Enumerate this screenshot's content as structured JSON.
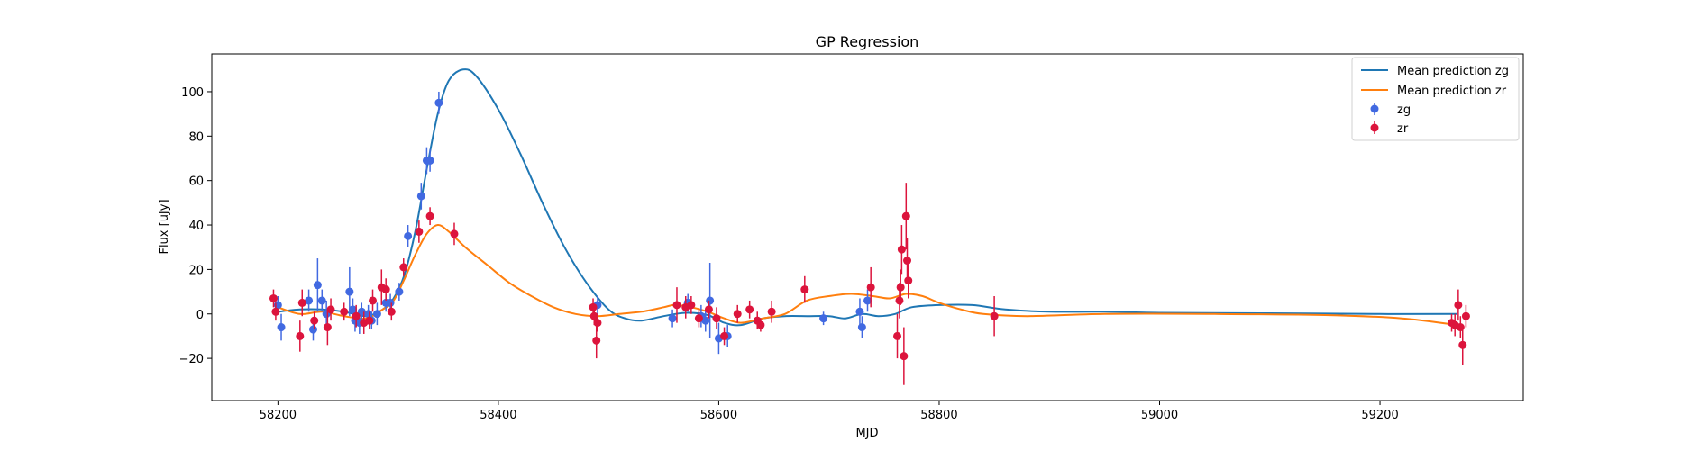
{
  "chart_data": {
    "type": "scatter",
    "title": "GP Regression",
    "xlabel": "MJD",
    "ylabel": "Flux [uJy]",
    "xlim": [
      58140,
      59330
    ],
    "ylim": [
      -39,
      117
    ],
    "xticks": [
      58200,
      58400,
      58600,
      58800,
      59000,
      59200
    ],
    "yticks": [
      -20,
      0,
      20,
      40,
      60,
      80,
      100
    ],
    "grid": false,
    "legend_position": "upper right",
    "lines": [
      {
        "name": "Mean prediction zg",
        "color": "#1f77b4",
        "points": [
          [
            58200,
            1
          ],
          [
            58220,
            2
          ],
          [
            58240,
            2
          ],
          [
            58260,
            1
          ],
          [
            58280,
            -1
          ],
          [
            58295,
            2
          ],
          [
            58305,
            7
          ],
          [
            58315,
            18
          ],
          [
            58325,
            38
          ],
          [
            58335,
            65
          ],
          [
            58345,
            90
          ],
          [
            58355,
            105
          ],
          [
            58368,
            110
          ],
          [
            58380,
            107
          ],
          [
            58400,
            92
          ],
          [
            58420,
            72
          ],
          [
            58440,
            50
          ],
          [
            58460,
            30
          ],
          [
            58480,
            14
          ],
          [
            58500,
            2
          ],
          [
            58515,
            -2
          ],
          [
            58530,
            -3
          ],
          [
            58550,
            -1
          ],
          [
            58570,
            0.5
          ],
          [
            58590,
            -0.5
          ],
          [
            58605,
            -4
          ],
          [
            58620,
            -5
          ],
          [
            58640,
            -2
          ],
          [
            58660,
            -1
          ],
          [
            58680,
            -1
          ],
          [
            58700,
            -1
          ],
          [
            58715,
            -2
          ],
          [
            58730,
            0
          ],
          [
            58745,
            -1
          ],
          [
            58760,
            0
          ],
          [
            58775,
            3
          ],
          [
            58800,
            4
          ],
          [
            58830,
            4
          ],
          [
            58860,
            2
          ],
          [
            58900,
            1
          ],
          [
            58950,
            1
          ],
          [
            59000,
            0.5
          ],
          [
            59100,
            0.3
          ],
          [
            59200,
            0
          ],
          [
            59270,
            0
          ]
        ]
      },
      {
        "name": "Mean prediction zr",
        "color": "#ff7f0e",
        "points": [
          [
            58200,
            3
          ],
          [
            58220,
            0
          ],
          [
            58240,
            1
          ],
          [
            58260,
            -1
          ],
          [
            58280,
            -2
          ],
          [
            58295,
            2
          ],
          [
            58305,
            6
          ],
          [
            58315,
            16
          ],
          [
            58325,
            27
          ],
          [
            58335,
            36
          ],
          [
            58345,
            40
          ],
          [
            58355,
            37
          ],
          [
            58370,
            30
          ],
          [
            58390,
            22
          ],
          [
            58410,
            14
          ],
          [
            58430,
            8
          ],
          [
            58450,
            3
          ],
          [
            58470,
            0
          ],
          [
            58490,
            -1
          ],
          [
            58510,
            0
          ],
          [
            58530,
            1
          ],
          [
            58550,
            3
          ],
          [
            58560,
            4
          ],
          [
            58575,
            3
          ],
          [
            58590,
            1
          ],
          [
            58605,
            -2
          ],
          [
            58620,
            -4
          ],
          [
            58640,
            -2
          ],
          [
            58660,
            0
          ],
          [
            58680,
            6
          ],
          [
            58700,
            8
          ],
          [
            58720,
            9
          ],
          [
            58740,
            8
          ],
          [
            58755,
            7
          ],
          [
            58770,
            9
          ],
          [
            58785,
            8
          ],
          [
            58800,
            5
          ],
          [
            58820,
            2
          ],
          [
            58840,
            0
          ],
          [
            58880,
            -1
          ],
          [
            58950,
            0
          ],
          [
            59050,
            0
          ],
          [
            59150,
            -0.5
          ],
          [
            59220,
            -2
          ],
          [
            59270,
            -5
          ]
        ]
      }
    ],
    "series": [
      {
        "name": "zg",
        "color": "#4169e1",
        "points": [
          [
            58200,
            4,
            4
          ],
          [
            58203,
            -6,
            6
          ],
          [
            58228,
            6,
            5
          ],
          [
            58232,
            -7,
            5
          ],
          [
            58236,
            13,
            12
          ],
          [
            58240,
            6,
            5
          ],
          [
            58244,
            0,
            6
          ],
          [
            58265,
            10,
            11
          ],
          [
            58268,
            2,
            5
          ],
          [
            58270,
            -3,
            5
          ],
          [
            58274,
            -4,
            5
          ],
          [
            58276,
            1,
            4
          ],
          [
            58282,
            0,
            4
          ],
          [
            58285,
            -3,
            4
          ],
          [
            58290,
            0,
            5
          ],
          [
            58298,
            5,
            4
          ],
          [
            58302,
            5,
            4
          ],
          [
            58310,
            10,
            4
          ],
          [
            58318,
            35,
            5
          ],
          [
            58330,
            53,
            6
          ],
          [
            58335,
            69,
            6
          ],
          [
            58338,
            69,
            5
          ],
          [
            58346,
            95,
            5
          ],
          [
            58490,
            4,
            4
          ],
          [
            58558,
            -2,
            4
          ],
          [
            58572,
            5,
            4
          ],
          [
            58584,
            -1,
            5
          ],
          [
            58588,
            -3,
            5
          ],
          [
            58592,
            6,
            17
          ],
          [
            58600,
            -11,
            7
          ],
          [
            58608,
            -10,
            5
          ],
          [
            58695,
            -2,
            3
          ],
          [
            58728,
            1,
            6
          ],
          [
            58730,
            -6,
            5
          ],
          [
            58735,
            6,
            5
          ]
        ]
      },
      {
        "name": "zr",
        "color": "#dc143c",
        "points": [
          [
            58196,
            7,
            4
          ],
          [
            58198,
            1,
            4
          ],
          [
            58220,
            -10,
            7
          ],
          [
            58222,
            5,
            6
          ],
          [
            58233,
            -3,
            4
          ],
          [
            58245,
            -6,
            8
          ],
          [
            58248,
            2,
            5
          ],
          [
            58260,
            1,
            4
          ],
          [
            58271,
            -1,
            5
          ],
          [
            58278,
            -4,
            5
          ],
          [
            58283,
            -3,
            4
          ],
          [
            58286,
            6,
            5
          ],
          [
            58294,
            12,
            8
          ],
          [
            58298,
            11,
            5
          ],
          [
            58303,
            1,
            4
          ],
          [
            58314,
            21,
            4
          ],
          [
            58328,
            37,
            5
          ],
          [
            58338,
            44,
            4
          ],
          [
            58360,
            36,
            5
          ],
          [
            58486,
            3,
            4
          ],
          [
            58487,
            -1,
            4
          ],
          [
            58489,
            -12,
            8
          ],
          [
            58490,
            -4,
            4
          ],
          [
            58562,
            4,
            8
          ],
          [
            58570,
            3,
            5
          ],
          [
            58575,
            4,
            4
          ],
          [
            58582,
            -2,
            4
          ],
          [
            58591,
            2,
            4
          ],
          [
            58598,
            -2,
            5
          ],
          [
            58605,
            -10,
            4
          ],
          [
            58617,
            0,
            4
          ],
          [
            58628,
            2,
            4
          ],
          [
            58635,
            -3,
            4
          ],
          [
            58638,
            -5,
            3
          ],
          [
            58648,
            1,
            5
          ],
          [
            58678,
            11,
            6
          ],
          [
            58738,
            12,
            9
          ],
          [
            58762,
            -10,
            10
          ],
          [
            58764,
            6,
            8
          ],
          [
            58765,
            12,
            8
          ],
          [
            58766,
            29,
            11
          ],
          [
            58768,
            -19,
            13
          ],
          [
            58770,
            44,
            15
          ],
          [
            58771,
            24,
            10
          ],
          [
            58772,
            15,
            8
          ],
          [
            58850,
            -1,
            9
          ],
          [
            59265,
            -4,
            4
          ],
          [
            59268,
            -5,
            5
          ],
          [
            59271,
            4,
            7
          ],
          [
            59273,
            -6,
            5
          ],
          [
            59275,
            -14,
            9
          ],
          [
            59278,
            -1,
            5
          ]
        ]
      }
    ]
  }
}
